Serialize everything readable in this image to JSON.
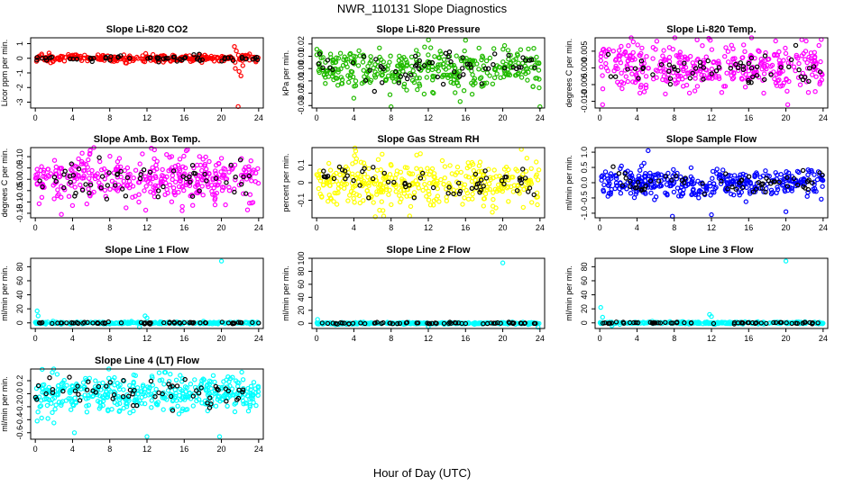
{
  "figure": {
    "title": "NWR_110131  Slope Diagnostics",
    "xlabel": "Hour of Day (UTC)"
  },
  "colors": {
    "red": "#ff0000",
    "green": "#22bb00",
    "magenta": "#ff00ff",
    "yellow": "#ffff00",
    "blue": "#0000ff",
    "cyan": "#00ffff",
    "black": "#000000"
  },
  "chart_data": [
    {
      "type": "scatter",
      "title": "Slope Li-820 CO2",
      "ylabel": "Licor ppm per min.",
      "color": "red",
      "xlim": [
        -0.5,
        24.5
      ],
      "ylim": [
        -3.4,
        1.4
      ],
      "xticks": [
        0,
        4,
        8,
        12,
        16,
        20,
        24
      ],
      "yticks": [
        1,
        0,
        -1,
        -2,
        -3
      ],
      "ytick_labels": [
        "1",
        "0",
        "-1",
        "-2",
        "-3"
      ],
      "center": 0,
      "spread": 0.12,
      "bg_n": 300,
      "bk_n": 60,
      "special": [
        {
          "x": 21.4,
          "y": 0.8
        },
        {
          "x": 21.6,
          "y": 0.5
        },
        {
          "x": 21.9,
          "y": -0.9
        },
        {
          "x": 22.1,
          "y": -1.2
        },
        {
          "x": 21.8,
          "y": -3.3
        },
        {
          "x": 22.3,
          "y": -0.5
        },
        {
          "x": 21.5,
          "y": -0.7
        }
      ]
    },
    {
      "type": "scatter",
      "title": "Slope Li-820 Pressure",
      "ylabel": "kPa per min.",
      "color": "green",
      "xlim": [
        -0.5,
        24.5
      ],
      "ylim": [
        -0.032,
        0.025
      ],
      "xticks": [
        0,
        4,
        8,
        12,
        16,
        20,
        24
      ],
      "yticks": [
        0.02,
        0.01,
        0,
        -0.01,
        -0.02,
        -0.03
      ],
      "ytick_labels": [
        "0.02",
        "0.01",
        "0.00",
        "-0.01",
        "-0.02",
        "-0.03"
      ],
      "center": 0,
      "spread": 0.008,
      "bg_n": 380,
      "bk_n": 60,
      "special": [
        {
          "x": 8.0,
          "y": -0.031
        },
        {
          "x": 16.0,
          "y": 0.023
        },
        {
          "x": 24.0,
          "y": -0.031
        },
        {
          "x": 4.0,
          "y": -0.024
        }
      ]
    },
    {
      "type": "scatter",
      "title": "Slope Li-820 Temp.",
      "ylabel": "degrees C per min.",
      "color": "magenta",
      "xlim": [
        -0.5,
        24.5
      ],
      "ylim": [
        -0.012,
        0.009
      ],
      "xticks": [
        0,
        4,
        8,
        12,
        16,
        20,
        24
      ],
      "yticks": [
        0.005,
        0,
        -0.005,
        -0.01
      ],
      "ytick_labels": [
        "0.005",
        "0.000",
        "-0.005",
        "-0.010"
      ],
      "center": 0,
      "spread": 0.0035,
      "bg_n": 380,
      "bk_n": 60,
      "special": [
        {
          "x": 23.8,
          "y": 0.0085
        },
        {
          "x": 0.3,
          "y": -0.011
        },
        {
          "x": 20.2,
          "y": -0.011
        }
      ]
    },
    {
      "type": "scatter",
      "title": "Slope Amb. Box Temp.",
      "ylabel": "degrees C per min.",
      "color": "magenta",
      "xlim": [
        -0.5,
        24.5
      ],
      "ylim": [
        -0.17,
        0.14
      ],
      "xticks": [
        0,
        4,
        8,
        12,
        16,
        20,
        24
      ],
      "yticks": [
        0.1,
        0.05,
        0,
        -0.05,
        -0.1,
        -0.15
      ],
      "ytick_labels": [
        "0.10",
        "0.05",
        "0.00",
        "-0.05",
        "-0.10",
        "-0.15"
      ],
      "center": 0,
      "spread": 0.05,
      "bg_n": 380,
      "bk_n": 60,
      "special": [
        {
          "x": 2.8,
          "y": -0.155
        },
        {
          "x": 12.8,
          "y": 0.13
        },
        {
          "x": 22.8,
          "y": -0.135
        }
      ]
    },
    {
      "type": "scatter",
      "title": "Slope Gas Stream RH",
      "ylabel": "percent per min.",
      "color": "yellow",
      "xlim": [
        -0.5,
        24.5
      ],
      "ylim": [
        -0.2,
        0.2
      ],
      "xticks": [
        0,
        4,
        8,
        12,
        16,
        20,
        24
      ],
      "yticks": [
        0.1,
        0,
        -0.1
      ],
      "ytick_labels": [
        "0.1",
        "0",
        "-0.1"
      ],
      "center": 0,
      "spread": 0.065,
      "bg_n": 380,
      "bk_n": 60,
      "special": [
        {
          "x": 7.2,
          "y": -0.19
        },
        {
          "x": 22.0,
          "y": 0.19
        },
        {
          "x": 4.2,
          "y": 0.18
        }
      ]
    },
    {
      "type": "scatter",
      "title": "Slope Sample Flow",
      "ylabel": "ml/min per min.",
      "color": "blue",
      "xlim": [
        -0.5,
        24.5
      ],
      "ylim": [
        -1.15,
        1.15
      ],
      "xticks": [
        0,
        4,
        8,
        12,
        16,
        20,
        24
      ],
      "yticks": [
        1,
        0.5,
        0,
        -0.5,
        -1
      ],
      "ytick_labels": [
        "1.0",
        "0.5",
        "0.0",
        "-0.5",
        "-1.0"
      ],
      "center": 0,
      "spread": 0.22,
      "bg_n": 380,
      "bk_n": 60,
      "special": [
        {
          "x": 5.2,
          "y": 1.05
        },
        {
          "x": 7.8,
          "y": -1.1
        },
        {
          "x": 12.0,
          "y": -1.05
        },
        {
          "x": 20.0,
          "y": -0.95
        }
      ]
    },
    {
      "type": "scatter",
      "title": "Slope Line 1 Flow",
      "ylabel": "ml/min per min.",
      "color": "cyan",
      "xlim": [
        -0.5,
        24.5
      ],
      "ylim": [
        -8,
        92
      ],
      "xticks": [
        0,
        4,
        8,
        12,
        16,
        20,
        24
      ],
      "yticks": [
        0,
        20,
        40,
        60,
        80
      ],
      "ytick_labels": [
        "0",
        "20",
        "40",
        "60",
        "80"
      ],
      "center": 0,
      "spread": 0.7,
      "bg_n": 300,
      "bk_n": 60,
      "special": [
        {
          "x": 20.0,
          "y": 88
        },
        {
          "x": 0.2,
          "y": 17
        },
        {
          "x": 0.3,
          "y": 10
        },
        {
          "x": 11.8,
          "y": 10
        },
        {
          "x": 12.0,
          "y": 7
        },
        {
          "x": 11.2,
          "y": -6
        }
      ]
    },
    {
      "type": "scatter",
      "title": "Slope Line 2 Flow",
      "ylabel": "ml/min per min.",
      "color": "cyan",
      "xlim": [
        -0.5,
        24.5
      ],
      "ylim": [
        -8,
        100
      ],
      "xticks": [
        0,
        4,
        8,
        12,
        16,
        20,
        24
      ],
      "yticks": [
        0,
        20,
        40,
        60,
        80,
        100
      ],
      "ytick_labels": [
        "0",
        "20",
        "40",
        "60",
        "80",
        "100"
      ],
      "center": 0,
      "spread": 0.7,
      "bg_n": 300,
      "bk_n": 60,
      "special": [
        {
          "x": 20.0,
          "y": 93
        },
        {
          "x": 0.1,
          "y": 6
        },
        {
          "x": 12.0,
          "y": -5
        },
        {
          "x": 23.8,
          "y": -6
        }
      ]
    },
    {
      "type": "scatter",
      "title": "Slope Line 3 Flow",
      "ylabel": "ml/min per min.",
      "color": "cyan",
      "xlim": [
        -0.5,
        24.5
      ],
      "ylim": [
        -8,
        92
      ],
      "xticks": [
        0,
        4,
        8,
        12,
        16,
        20,
        24
      ],
      "yticks": [
        0,
        20,
        40,
        60,
        80
      ],
      "ytick_labels": [
        "0",
        "20",
        "40",
        "60",
        "80"
      ],
      "center": 0,
      "spread": 0.7,
      "bg_n": 300,
      "bk_n": 60,
      "special": [
        {
          "x": 20.0,
          "y": 88
        },
        {
          "x": 0.1,
          "y": 22
        },
        {
          "x": 0.3,
          "y": 8
        },
        {
          "x": 11.8,
          "y": 12
        },
        {
          "x": 12.0,
          "y": 9
        },
        {
          "x": 1.3,
          "y": -4
        }
      ]
    },
    {
      "type": "scatter",
      "title": "Slope Line 4 (LT) Flow",
      "ylabel": "ml/min per min.",
      "color": "cyan",
      "xlim": [
        -0.5,
        24.5
      ],
      "ylim": [
        -0.7,
        0.38
      ],
      "xticks": [
        0,
        4,
        8,
        12,
        16,
        20,
        24
      ],
      "yticks": [
        0.2,
        0,
        -0.2,
        -0.4,
        -0.6
      ],
      "ytick_labels": [
        "0.2",
        "0.0",
        "-0.2",
        "-0.4",
        "-0.6"
      ],
      "center": 0,
      "spread": 0.13,
      "bg_n": 420,
      "bk_n": 60,
      "special": [
        {
          "x": 4.2,
          "y": -0.6
        },
        {
          "x": 12.0,
          "y": -0.66
        },
        {
          "x": 19.8,
          "y": -0.66
        },
        {
          "x": 0.2,
          "y": -0.42
        },
        {
          "x": 2.0,
          "y": -0.45
        }
      ]
    }
  ]
}
